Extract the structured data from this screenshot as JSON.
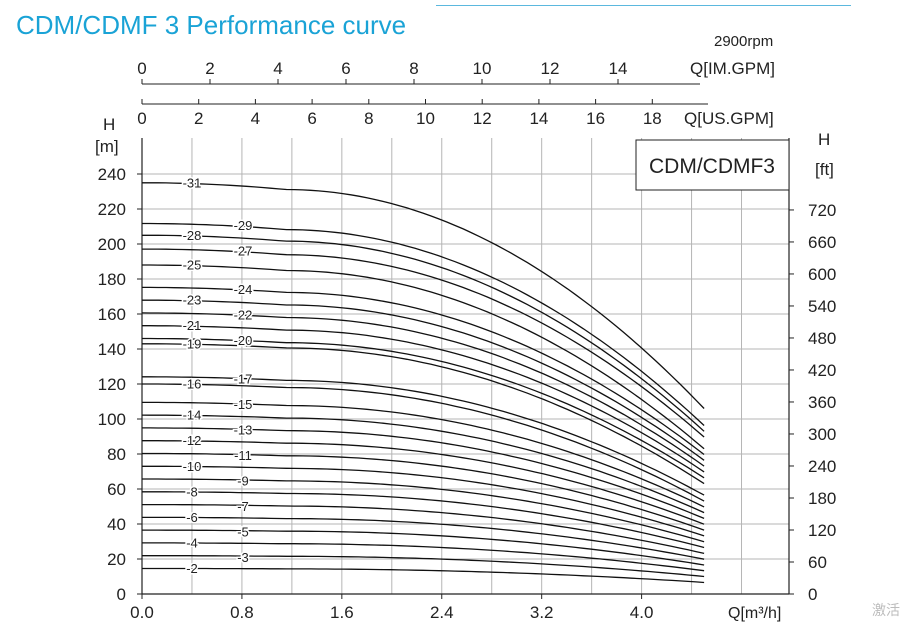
{
  "title": "CDM/CDMF 3 Performance curve",
  "speed_label": "2900rpm",
  "model_label": "CDM/CDMF3",
  "watermark": "激活",
  "chart_data": {
    "type": "line",
    "title": "CDM/CDMF 3 Performance curve",
    "xlabel": "Q[m³/h]",
    "x_ticks": [
      "0.0",
      "0.8",
      "1.6",
      "2.4",
      "3.2",
      "4.0"
    ],
    "xlim": [
      0,
      4.8
    ],
    "ylabel_left_top": "H",
    "ylabel_left_unit": "[m]",
    "y_ticks_left": [
      0,
      20,
      40,
      60,
      80,
      100,
      120,
      140,
      160,
      180,
      200,
      220,
      240
    ],
    "ylim": [
      0,
      260
    ],
    "ylabel_right_top": "H",
    "ylabel_right_unit": "[ft]",
    "y_ticks_right": [
      0,
      60,
      120,
      180,
      240,
      300,
      360,
      420,
      480,
      540,
      600,
      660,
      720
    ],
    "top_axis_us": {
      "label": "Q[US.GPM]",
      "ticks": [
        0,
        2,
        4,
        6,
        8,
        10,
        12,
        14,
        16,
        18
      ]
    },
    "top_axis_im": {
      "label": "Q[IM.GPM]",
      "ticks": [
        0,
        2,
        4,
        6,
        8,
        10,
        12,
        14
      ]
    },
    "grid": true,
    "curve_end_q": 4.5,
    "series": [
      {
        "name": "-2",
        "values": [
          [
            0,
            14.6
          ],
          [
            4.5,
            6.6
          ]
        ]
      },
      {
        "name": "-3",
        "values": [
          [
            0,
            21.9
          ],
          [
            4.5,
            10.0
          ]
        ]
      },
      {
        "name": "-4",
        "values": [
          [
            0,
            29.2
          ],
          [
            4.5,
            13.3
          ]
        ]
      },
      {
        "name": "-5",
        "values": [
          [
            0,
            36.5
          ],
          [
            4.5,
            16.6
          ]
        ]
      },
      {
        "name": "-6",
        "values": [
          [
            0,
            43.8
          ],
          [
            4.5,
            19.9
          ]
        ]
      },
      {
        "name": "-7",
        "values": [
          [
            0,
            51.1
          ],
          [
            4.5,
            23.2
          ]
        ]
      },
      {
        "name": "-8",
        "values": [
          [
            0,
            58.4
          ],
          [
            4.5,
            26.6
          ]
        ]
      },
      {
        "name": "-9",
        "values": [
          [
            0,
            65.7
          ],
          [
            4.5,
            29.9
          ]
        ]
      },
      {
        "name": "-10",
        "values": [
          [
            0,
            73.0
          ],
          [
            4.5,
            33.2
          ]
        ]
      },
      {
        "name": "-11",
        "values": [
          [
            0,
            80.3
          ],
          [
            4.5,
            36.5
          ]
        ]
      },
      {
        "name": "-12",
        "values": [
          [
            0,
            87.6
          ],
          [
            4.5,
            39.9
          ]
        ]
      },
      {
        "name": "-13",
        "values": [
          [
            0,
            94.9
          ],
          [
            4.5,
            43.2
          ]
        ]
      },
      {
        "name": "-14",
        "values": [
          [
            0,
            102.2
          ],
          [
            4.5,
            46.5
          ]
        ]
      },
      {
        "name": "-15",
        "values": [
          [
            0,
            109.5
          ],
          [
            4.5,
            49.8
          ]
        ]
      },
      {
        "name": "-16",
        "values": [
          [
            0,
            120.0
          ],
          [
            4.5,
            53.1
          ]
        ]
      },
      {
        "name": "-17",
        "values": [
          [
            0,
            124.1
          ],
          [
            4.5,
            56.5
          ]
        ]
      },
      {
        "name": "-19",
        "values": [
          [
            0,
            143.0
          ],
          [
            4.5,
            63.1
          ]
        ]
      },
      {
        "name": "-20",
        "values": [
          [
            0,
            146.0
          ],
          [
            4.5,
            66.4
          ]
        ]
      },
      {
        "name": "-21",
        "values": [
          [
            0,
            153.3
          ],
          [
            4.5,
            69.8
          ]
        ]
      },
      {
        "name": "-22",
        "values": [
          [
            0,
            160.6
          ],
          [
            4.5,
            73.1
          ]
        ]
      },
      {
        "name": "-23",
        "values": [
          [
            0,
            167.9
          ],
          [
            4.5,
            76.4
          ]
        ]
      },
      {
        "name": "-24",
        "values": [
          [
            0,
            175.2
          ],
          [
            4.5,
            79.7
          ]
        ]
      },
      {
        "name": "-25",
        "values": [
          [
            0,
            188.0
          ],
          [
            4.5,
            83.0
          ]
        ]
      },
      {
        "name": "-27",
        "values": [
          [
            0,
            197.1
          ],
          [
            4.5,
            89.7
          ]
        ]
      },
      {
        "name": "-28",
        "values": [
          [
            0,
            205.0
          ],
          [
            4.5,
            93.0
          ]
        ]
      },
      {
        "name": "-29",
        "values": [
          [
            0,
            211.7
          ],
          [
            4.5,
            96.3
          ]
        ]
      },
      {
        "name": "-31",
        "values": [
          [
            0,
            235.0
          ],
          [
            4.5,
            106.0
          ]
        ]
      }
    ]
  }
}
